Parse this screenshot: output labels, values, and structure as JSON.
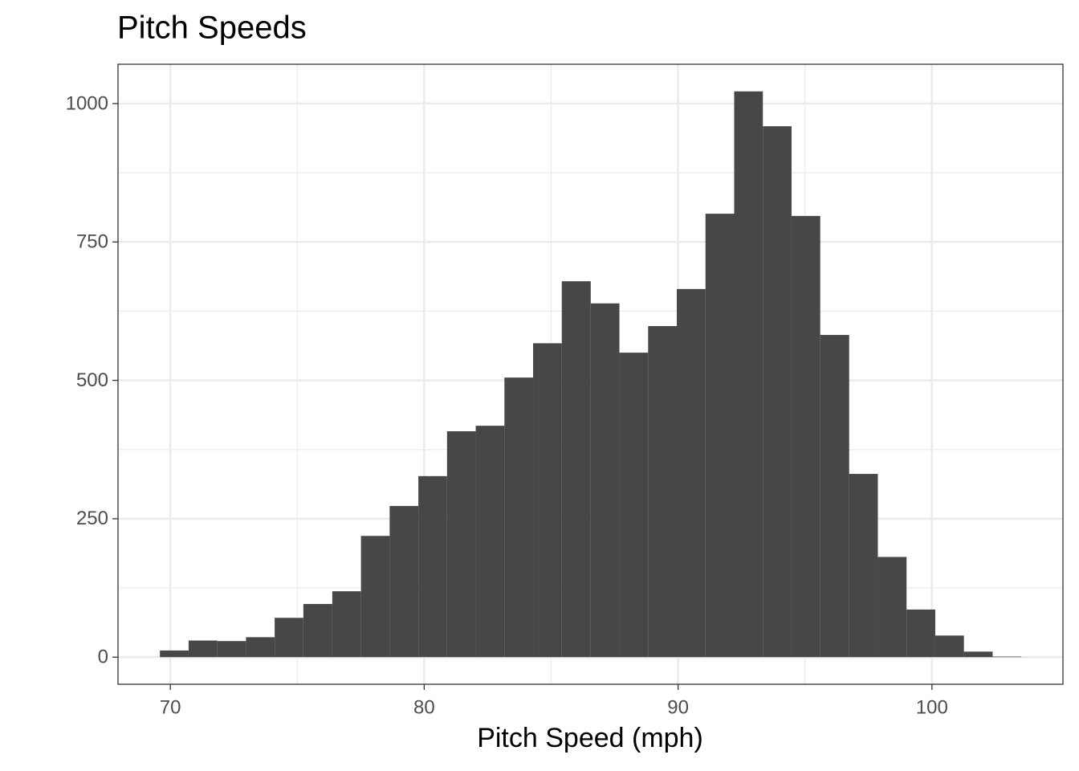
{
  "chart_data": {
    "type": "histogram",
    "title": "Pitch Speeds",
    "x_label": "Pitch Speed (mph)",
    "bins": [
      69.59,
      70.72,
      71.85,
      72.98,
      74.11,
      75.24,
      76.38,
      77.51,
      78.64,
      79.77,
      80.9,
      82.03,
      83.16,
      84.29,
      85.42,
      86.56,
      87.69,
      88.82,
      89.95,
      91.08,
      92.21,
      93.34,
      94.47,
      95.6,
      96.74,
      97.87,
      99.0,
      100.13,
      101.26,
      102.39,
      103.52
    ],
    "counts": [
      12,
      30,
      29,
      36,
      71,
      96,
      119,
      219,
      273,
      327,
      408,
      418,
      505,
      567,
      679,
      639,
      550,
      598,
      665,
      801,
      1022,
      959,
      797,
      582,
      331,
      181,
      86,
      39,
      10,
      1
    ],
    "color": "#474747",
    "xlim": [
      67.94,
      105.16
    ],
    "xticks": [
      70,
      80,
      90,
      100
    ],
    "xminor": [
      75,
      85,
      95
    ],
    "ylim": [
      -49,
      1071
    ],
    "yticks": [
      0,
      250,
      500,
      750,
      1000
    ],
    "yminor": [
      125,
      375,
      625,
      875
    ],
    "grid": true
  }
}
